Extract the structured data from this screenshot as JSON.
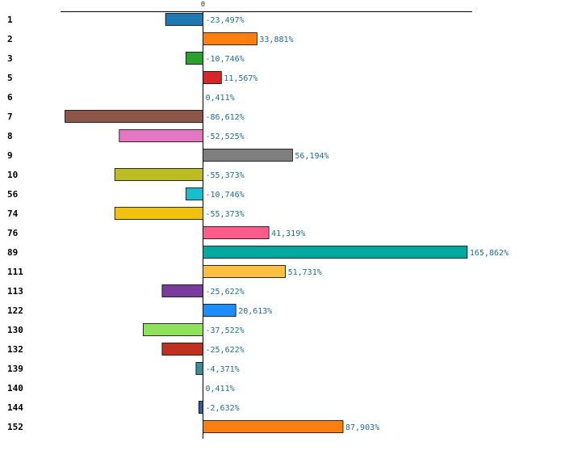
{
  "chart_data": {
    "type": "bar",
    "orientation": "horizontal",
    "title": "",
    "xlabel": "",
    "ylabel": "",
    "zero_tick_label": "0",
    "value_suffix": "%",
    "decimal_separator": ",",
    "xlim": [
      -100,
      190
    ],
    "grid": false,
    "categories": [
      "1",
      "2",
      "3",
      "5",
      "6",
      "7",
      "8",
      "9",
      "10",
      "56",
      "74",
      "76",
      "89",
      "111",
      "113",
      "122",
      "130",
      "132",
      "139",
      "140",
      "144",
      "152"
    ],
    "values": [
      -23.497,
      33.881,
      -10.746,
      11.567,
      0.411,
      -86.612,
      -52.525,
      56.194,
      -55.373,
      -10.746,
      -55.373,
      41.319,
      165.862,
      51.731,
      -25.622,
      20.613,
      -37.522,
      -25.622,
      -4.371,
      0.411,
      -2.632,
      87.903
    ],
    "value_labels": [
      "-23,497%",
      "33,881%",
      "-10,746%",
      "11,567%",
      "0,411%",
      "-86,612%",
      "-52,525%",
      "56,194%",
      "-55,373%",
      "-10,746%",
      "-55,373%",
      "41,319%",
      "165,862%",
      "51,731%",
      "-25,622%",
      "20,613%",
      "-37,522%",
      "-25,622%",
      "-4,371%",
      "0,411%",
      "-2,632%",
      "87,903%"
    ],
    "colors": [
      "#1f77b4",
      "#ff7f0e",
      "#2ca02c",
      "#d62728",
      "#9467bd",
      "#8c564b",
      "#e377c2",
      "#7f7f7f",
      "#bcbd22",
      "#17becf",
      "#f0c20e",
      "#ff5c8d",
      "#00a99d",
      "#ffbf40",
      "#7a3b9e",
      "#1e8bff",
      "#8fe35a",
      "#c0301f",
      "#3b8a9e",
      "#1f77b4",
      "#2b5fa0",
      "#ff7f0e"
    ]
  }
}
